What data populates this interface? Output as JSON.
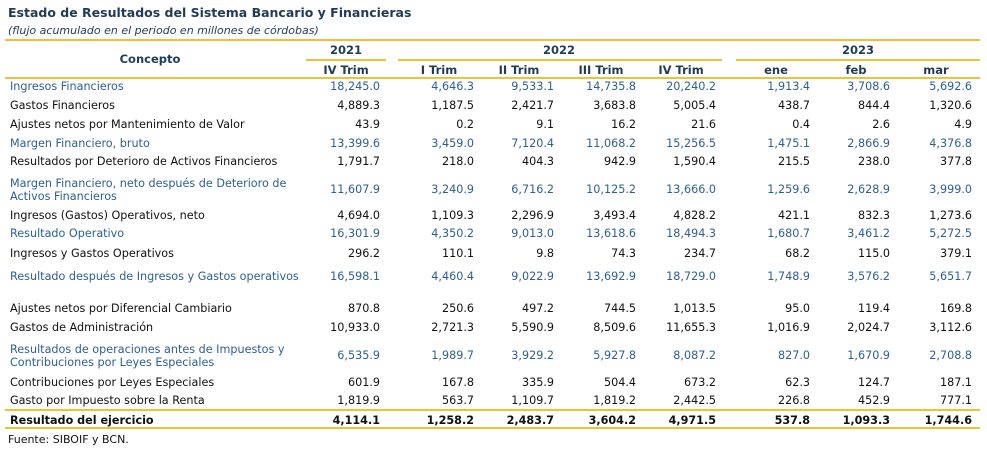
{
  "title": "Estado de Resultados del Sistema Bancario y Financieras",
  "subtitle": "(flujo acumulado en el periodo en millones de córdobas)",
  "header": {
    "concepto": "Concepto",
    "years": [
      "2021",
      "2022",
      "2023"
    ],
    "periods": [
      "IV Trim",
      "I Trim",
      "II Trim",
      "III Trim",
      "IV Trim",
      "ene",
      "feb",
      "mar"
    ]
  },
  "rows": [
    {
      "label": "Ingresos Financieros",
      "style": "blue",
      "values": [
        "18,245.0",
        "4,646.3",
        "9,533.1",
        "14,735.8",
        "20,240.2",
        "1,913.4",
        "3,708.6",
        "5,692.6"
      ]
    },
    {
      "label": "Gastos Financieros",
      "style": "black",
      "values": [
        "4,889.3",
        "1,187.5",
        "2,421.7",
        "3,683.8",
        "5,005.4",
        "438.7",
        "844.4",
        "1,320.6"
      ]
    },
    {
      "label": "Ajustes netos por Mantenimiento de Valor",
      "style": "black",
      "values": [
        "43.9",
        "0.2",
        "9.1",
        "16.2",
        "21.6",
        "0.4",
        "2.6",
        "4.9"
      ]
    },
    {
      "label": "Margen Financiero, bruto",
      "style": "blue",
      "values": [
        "13,399.6",
        "3,459.0",
        "7,120.4",
        "11,068.2",
        "15,256.5",
        "1,475.1",
        "2,866.9",
        "4,376.8"
      ]
    },
    {
      "label": "Resultados por Deterioro de Activos Financieros",
      "style": "black",
      "values": [
        "1,791.7",
        "218.0",
        "404.3",
        "942.9",
        "1,590.4",
        "215.5",
        "238.0",
        "377.8"
      ]
    },
    {
      "label": "Margen Financiero, neto después de Deterioro de Activos Financieros",
      "style": "blue",
      "values": [
        "11,607.9",
        "3,240.9",
        "6,716.2",
        "10,125.2",
        "13,666.0",
        "1,259.6",
        "2,628.9",
        "3,999.0"
      ]
    },
    {
      "label": "Ingresos (Gastos) Operativos, neto",
      "style": "black",
      "values": [
        "4,694.0",
        "1,109.3",
        "2,296.9",
        "3,493.4",
        "4,828.2",
        "421.1",
        "832.3",
        "1,273.6"
      ]
    },
    {
      "label": "Resultado Operativo",
      "style": "blue",
      "values": [
        "16,301.9",
        "4,350.2",
        "9,013.0",
        "13,618.6",
        "18,494.3",
        "1,680.7",
        "3,461.2",
        "5,272.5"
      ]
    },
    {
      "label": "Ingresos y Gastos Operativos",
      "style": "black",
      "values": [
        "296.2",
        "110.1",
        "9.8",
        "74.3",
        "234.7",
        "68.2",
        "115.0",
        "379.1"
      ]
    },
    {
      "label": "Resultado después de Ingresos y Gastos operativos",
      "style": "blue",
      "values": [
        "16,598.1",
        "4,460.4",
        "9,022.9",
        "13,692.9",
        "18,729.0",
        "1,748.9",
        "3,576.2",
        "5,651.7"
      ]
    },
    {
      "label": "Ajustes netos por Diferencial Cambiario",
      "style": "black",
      "values": [
        "870.8",
        "250.6",
        "497.2",
        "744.5",
        "1,013.5",
        "95.0",
        "119.4",
        "169.8"
      ]
    },
    {
      "label": "Gastos de Administración",
      "style": "black",
      "values": [
        "10,933.0",
        "2,721.3",
        "5,590.9",
        "8,509.6",
        "11,655.3",
        "1,016.9",
        "2,024.7",
        "3,112.6"
      ]
    },
    {
      "label": "Resultados de operaciones antes de Impuestos y Contribuciones por Leyes Especiales",
      "style": "blue",
      "values": [
        "6,535.9",
        "1,989.7",
        "3,929.2",
        "5,927.8",
        "8,087.2",
        "827.0",
        "1,670.9",
        "2,708.8"
      ]
    },
    {
      "label": "Contribuciones por Leyes Especiales",
      "style": "black",
      "values": [
        "601.9",
        "167.8",
        "335.9",
        "504.4",
        "673.2",
        "62.3",
        "124.7",
        "187.1"
      ]
    },
    {
      "label": "Gasto por Impuesto sobre la Renta",
      "style": "black",
      "values": [
        "1,819.9",
        "563.7",
        "1,109.7",
        "1,819.2",
        "2,442.5",
        "226.8",
        "452.9",
        "777.1"
      ]
    },
    {
      "label": "Resultado del ejercicio",
      "style": "total",
      "values": [
        "4,114.1",
        "1,258.2",
        "2,483.7",
        "3,604.2",
        "4,971.5",
        "537.8",
        "1,093.3",
        "1,744.6"
      ]
    }
  ],
  "source": "Fuente: SIBOIF y BCN.",
  "colors": {
    "accent_line": "#f0c132",
    "blue_text": "#2b5f95",
    "header_text": "#1f3b5a"
  }
}
